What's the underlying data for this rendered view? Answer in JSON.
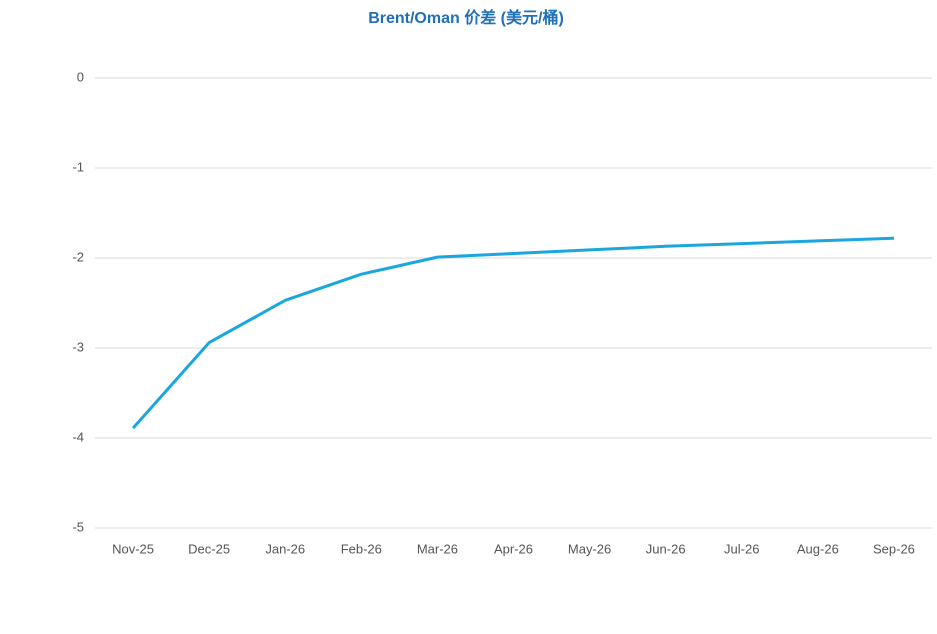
{
  "chart_data": {
    "type": "line",
    "title": "Brent/Oman 价差 (美元/桶)",
    "categories": [
      "Nov-25",
      "Dec-25",
      "Jan-26",
      "Feb-26",
      "Mar-26",
      "Apr-26",
      "May-26",
      "Jun-26",
      "Jul-26",
      "Aug-26",
      "Sep-26"
    ],
    "series": [
      {
        "name": "Brent/Oman",
        "color": "#1aa7e0",
        "values": [
          -3.89,
          -2.94,
          -2.47,
          -2.18,
          -1.99,
          -1.95,
          -1.91,
          -1.87,
          -1.84,
          -1.81,
          -1.78
        ]
      }
    ],
    "ylim": [
      -5,
      0
    ],
    "yticks": [
      0,
      -1,
      -2,
      -3,
      -4,
      -5
    ],
    "grid": true
  }
}
